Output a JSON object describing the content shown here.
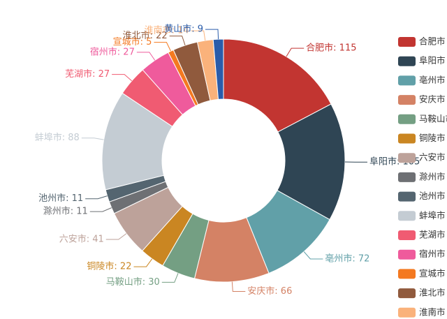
{
  "chart_data": {
    "type": "pie",
    "variant": "donut",
    "slices": [
      {
        "name": "合肥市",
        "value": 115,
        "color": "#c23531"
      },
      {
        "name": "阜阳市",
        "value": 105,
        "color": "#2f4554"
      },
      {
        "name": "亳州市",
        "value": 72,
        "color": "#61a0a8"
      },
      {
        "name": "安庆市",
        "value": 66,
        "color": "#d48265"
      },
      {
        "name": "马鞍山市",
        "value": 30,
        "color": "#749f83"
      },
      {
        "name": "铜陵市",
        "value": 22,
        "color": "#ca8622"
      },
      {
        "name": "六安市",
        "value": 41,
        "color": "#bda29a"
      },
      {
        "name": "滁州市",
        "value": 11,
        "color": "#6e7074"
      },
      {
        "name": "池州市",
        "value": 11,
        "color": "#546570"
      },
      {
        "name": "蚌埠市",
        "value": 88,
        "color": "#c4ccd3"
      },
      {
        "name": "芜湖市",
        "value": 27,
        "color": "#f05b72"
      },
      {
        "name": "宿州市",
        "value": 27,
        "color": "#ef5b9c"
      },
      {
        "name": "宣城市",
        "value": 5,
        "color": "#f47920"
      },
      {
        "name": "淮北市",
        "value": 22,
        "color": "#905a3d"
      },
      {
        "name": "淮南市",
        "value": 14,
        "color": "#fab27b"
      },
      {
        "name": "黄山市",
        "value": 9,
        "color": "#2a5caa"
      }
    ],
    "label_separator": ": ",
    "legend": {
      "position": "right",
      "visible_items": [
        "合肥市",
        "阜阳市",
        "亳州市",
        "安庆市",
        "马鞍山市",
        "铜陵市",
        "六安市",
        "滁州市",
        "池州市",
        "蚌埠市",
        "芜湖市",
        "宿州市",
        "宣城市",
        "淮北市",
        "淮南市"
      ]
    }
  }
}
